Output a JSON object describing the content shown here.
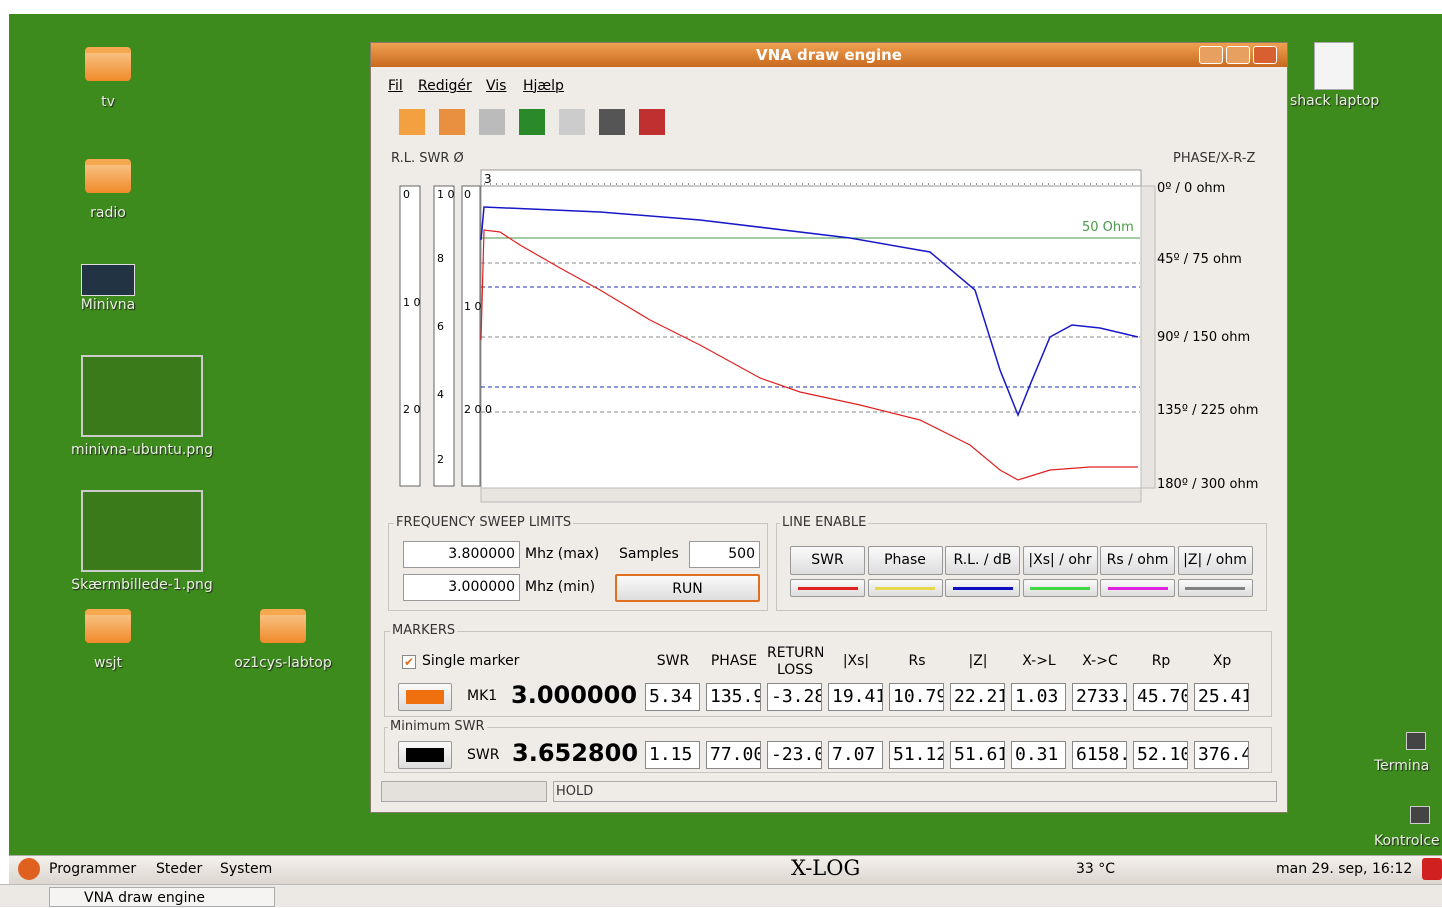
{
  "desktop": {
    "icons": [
      {
        "label": "tv"
      },
      {
        "label": "radio"
      },
      {
        "label": "Minivna"
      },
      {
        "label": "minivna-ubuntu.png"
      },
      {
        "label": "Skærmbillede-1.png"
      },
      {
        "label": "wsjt"
      },
      {
        "label": "oz1cys-labtop"
      },
      {
        "label": "shack laptop"
      },
      {
        "label": "Termina"
      },
      {
        "label": "Kontrolce"
      }
    ]
  },
  "window": {
    "title": "VNA draw engine",
    "menu": [
      "Fil",
      "Redigér",
      "Vis",
      "Hjælp"
    ]
  },
  "plot": {
    "left_label": "R.L.  SWR  Ø",
    "right_label": "PHASE/X-R-Z",
    "freq_start": "3",
    "ref_line": "50 Ohm",
    "right_ticks": [
      "0º / 0 ohm",
      "45º / 75 ohm",
      "90º / 150 ohm",
      "135º / 225 ohm",
      "180º / 300 ohm"
    ],
    "scale_a": [
      "0",
      "1 0",
      "2 0"
    ],
    "scale_b": [
      "1 0",
      "8",
      "6",
      "4",
      "2"
    ],
    "scale_c": [
      "0",
      "1 0",
      "2 0 0"
    ]
  },
  "sweep": {
    "title": "FREQUENCY SWEEP LIMITS",
    "max": "3.800000",
    "max_unit": "Mhz (max)",
    "samples_label": "Samples",
    "samples": "500",
    "min": "3.000000",
    "min_unit": "Mhz (min)",
    "run": "RUN"
  },
  "line_enable": {
    "title": "LINE ENABLE",
    "buttons": [
      {
        "label": "SWR",
        "color": "#e02020"
      },
      {
        "label": "Phase",
        "color": "#e8d84c"
      },
      {
        "label": "R.L. / dB",
        "color": "#1010c0"
      },
      {
        "label": "|Xs| / ohr",
        "color": "#40d840"
      },
      {
        "label": "Rs / ohm",
        "color": "#e020e0"
      },
      {
        "label": "|Z| / ohm",
        "color": "#808080"
      }
    ]
  },
  "markers": {
    "title": "MARKERS",
    "single": "Single marker",
    "headers": [
      "SWR",
      "PHASE",
      "RETURN LOSS",
      "|Xs|",
      "Rs",
      "|Z|",
      "X->L",
      "X->C",
      "Rp",
      "Xp"
    ],
    "mk1": {
      "label": "MK1",
      "freq": "3.000000",
      "values": [
        "5.34",
        "135.9",
        "-3.28",
        "19.41",
        "10.79",
        "22.21",
        "1.03",
        "2733.",
        "45.70",
        "25.41"
      ]
    },
    "min_swr": {
      "title": "Minimum SWR",
      "label": "SWR",
      "freq": "3.652800",
      "values": [
        "1.15",
        "77.00",
        "-23.0",
        "7.07",
        "51.12",
        "51.61",
        "0.31",
        "6158.",
        "52.10",
        "376.4"
      ]
    }
  },
  "status": {
    "text": "HOLD"
  },
  "taskbar": {
    "menus": [
      "Programmer",
      "Steder",
      "System"
    ],
    "xlog": "X-LOG",
    "temp": "33 °C",
    "clock": "man 29. sep, 16:12",
    "task": "VNA draw engine"
  }
}
